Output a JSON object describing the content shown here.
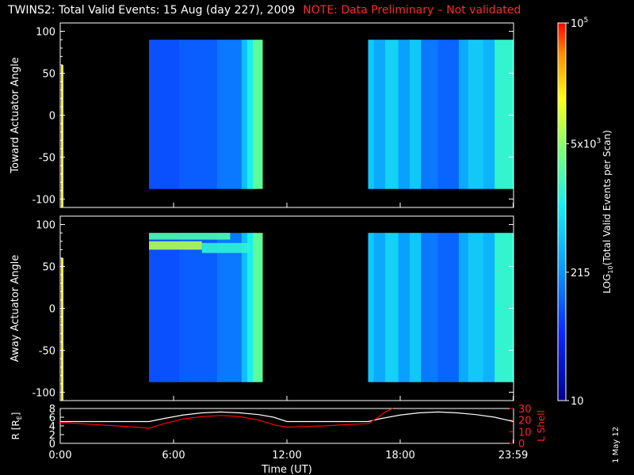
{
  "title": {
    "main": "TWINS2: Total Valid Events: 15 Aug (day 227), 2009",
    "note": "NOTE: Data Preliminary – Not validated"
  },
  "stamp": "1 May 12",
  "colors": {
    "background": "#000000",
    "note": "#ff2a2a",
    "r_line": "#ffffff",
    "lshell_line": "#ff0000"
  },
  "chart_data": [
    {
      "type": "heatmap",
      "name": "toward",
      "ylabel": "Toward Actuator Angle",
      "ylim": [
        -110,
        110
      ],
      "yticks": [
        100,
        50,
        0,
        -50,
        -100
      ],
      "xlim": [
        0,
        24
      ],
      "x_data_ranges": [
        [
          4.7,
          10.7
        ],
        [
          16.3,
          24.0
        ]
      ],
      "y_data_range": [
        -88,
        90
      ],
      "columns": [
        {
          "x": 4.7,
          "w": 1.6,
          "level": 0.24
        },
        {
          "x": 6.3,
          "w": 2.0,
          "level": 0.26
        },
        {
          "x": 8.3,
          "w": 1.3,
          "level": 0.3
        },
        {
          "x": 9.6,
          "w": 0.3,
          "level": 0.42
        },
        {
          "x": 9.9,
          "w": 0.3,
          "level": 0.52
        },
        {
          "x": 10.2,
          "w": 0.5,
          "level": 0.62
        },
        {
          "x": 16.3,
          "w": 0.3,
          "level": 0.44
        },
        {
          "x": 16.6,
          "w": 0.6,
          "level": 0.38
        },
        {
          "x": 17.2,
          "w": 0.7,
          "level": 0.46
        },
        {
          "x": 17.9,
          "w": 0.6,
          "level": 0.36
        },
        {
          "x": 18.5,
          "w": 0.6,
          "level": 0.44
        },
        {
          "x": 19.1,
          "w": 0.9,
          "level": 0.3
        },
        {
          "x": 20.0,
          "w": 1.1,
          "level": 0.27
        },
        {
          "x": 21.1,
          "w": 0.5,
          "level": 0.38
        },
        {
          "x": 21.6,
          "w": 0.8,
          "level": 0.44
        },
        {
          "x": 22.4,
          "w": 0.6,
          "level": 0.4
        },
        {
          "x": 23.0,
          "w": 1.0,
          "level": 0.56
        }
      ]
    },
    {
      "type": "heatmap",
      "name": "away",
      "ylabel": "Away Actuator Angle",
      "ylim": [
        -110,
        110
      ],
      "yticks": [
        100,
        50,
        0,
        -50,
        -100
      ],
      "xlim": [
        0,
        24
      ],
      "x_data_ranges": [
        [
          4.7,
          10.7
        ],
        [
          16.3,
          24.0
        ]
      ],
      "y_data_range": [
        -88,
        90
      ],
      "columns": [
        {
          "x": 4.7,
          "w": 1.6,
          "level": 0.24
        },
        {
          "x": 6.3,
          "w": 2.0,
          "level": 0.26
        },
        {
          "x": 8.3,
          "w": 1.3,
          "level": 0.3
        },
        {
          "x": 9.6,
          "w": 0.3,
          "level": 0.42
        },
        {
          "x": 9.9,
          "w": 0.3,
          "level": 0.52
        },
        {
          "x": 10.2,
          "w": 0.5,
          "level": 0.62
        },
        {
          "x": 16.3,
          "w": 0.3,
          "level": 0.44
        },
        {
          "x": 16.6,
          "w": 0.6,
          "level": 0.38
        },
        {
          "x": 17.2,
          "w": 0.7,
          "level": 0.46
        },
        {
          "x": 17.9,
          "w": 0.6,
          "level": 0.36
        },
        {
          "x": 18.5,
          "w": 0.6,
          "level": 0.44
        },
        {
          "x": 19.1,
          "w": 0.9,
          "level": 0.3
        },
        {
          "x": 20.0,
          "w": 1.1,
          "level": 0.27
        },
        {
          "x": 21.1,
          "w": 0.5,
          "level": 0.38
        },
        {
          "x": 21.6,
          "w": 0.8,
          "level": 0.44
        },
        {
          "x": 22.4,
          "w": 0.6,
          "level": 0.4
        },
        {
          "x": 23.0,
          "w": 1.0,
          "level": 0.56
        }
      ],
      "bands": [
        {
          "x0": 4.7,
          "x1": 9.0,
          "y0": 82,
          "y1": 90,
          "level": 0.6
        },
        {
          "x0": 4.7,
          "x1": 7.5,
          "y0": 70,
          "y1": 80,
          "level": 0.72
        },
        {
          "x0": 7.5,
          "x1": 10.0,
          "y0": 66,
          "y1": 78,
          "level": 0.55
        }
      ]
    },
    {
      "type": "line",
      "name": "orbit",
      "xlabel": "Time (UT)",
      "xticks": [
        "0:00",
        "6:00",
        "12:00",
        "18:00",
        "23:59"
      ],
      "xtick_values": [
        0,
        6,
        12,
        18,
        23.98
      ],
      "xlim": [
        0,
        24
      ],
      "ylabel_left": "R [R",
      "ylabel_left_sub": "E",
      "ylabel_left_close": "]",
      "ylim_left": [
        0,
        8
      ],
      "yticks_left": [
        0,
        2,
        4,
        6,
        8
      ],
      "ylabel_right": "L Shell",
      "ylim_right": [
        0,
        30
      ],
      "yticks_right": [
        0,
        10,
        20,
        30
      ],
      "series": [
        {
          "axis": "left",
          "color": "#ffffff",
          "x": [
            0,
            1,
            2,
            3,
            4,
            4.7,
            5.5,
            6.5,
            7.5,
            8.5,
            9.5,
            10.5,
            11.3,
            12.0,
            13,
            14,
            15,
            16.3,
            17,
            18,
            19,
            20,
            21,
            22,
            23,
            24
          ],
          "y": [
            5.0,
            5.0,
            5.0,
            5.0,
            5.0,
            5.0,
            5.7,
            6.5,
            7.0,
            7.2,
            7.0,
            6.6,
            6.0,
            5.0,
            5.0,
            5.0,
            5.0,
            5.0,
            5.7,
            6.5,
            7.0,
            7.2,
            7.0,
            6.6,
            6.0,
            5.0
          ]
        },
        {
          "axis": "right",
          "color": "#ff0000",
          "x": [
            0,
            1,
            2,
            3,
            4,
            4.7,
            5.5,
            6.5,
            7.5,
            8.5,
            9.5,
            10.5,
            11.3,
            12.0,
            13,
            14,
            15,
            16.3,
            16.8,
            17.2,
            17.6
          ],
          "y": [
            18,
            17,
            16,
            15,
            14,
            13,
            17,
            21,
            23,
            24,
            23,
            20,
            16,
            14,
            14.5,
            15,
            16,
            17,
            22,
            27,
            31
          ]
        }
      ]
    },
    {
      "type": "heatmap",
      "name": "colorbar",
      "label_pre": "LOG",
      "label_sub": "10",
      "label_post": "(Total Valid Events per Scan)",
      "tick_labels": [
        {
          "base": "10",
          "sup": "5",
          "pos": 1.0
        },
        {
          "base": "5x10",
          "sup": "3",
          "pos": 0.68
        },
        {
          "base": "215",
          "sup": "",
          "pos": 0.34
        },
        {
          "base": "10",
          "sup": "",
          "pos": 0.0
        }
      ]
    }
  ]
}
